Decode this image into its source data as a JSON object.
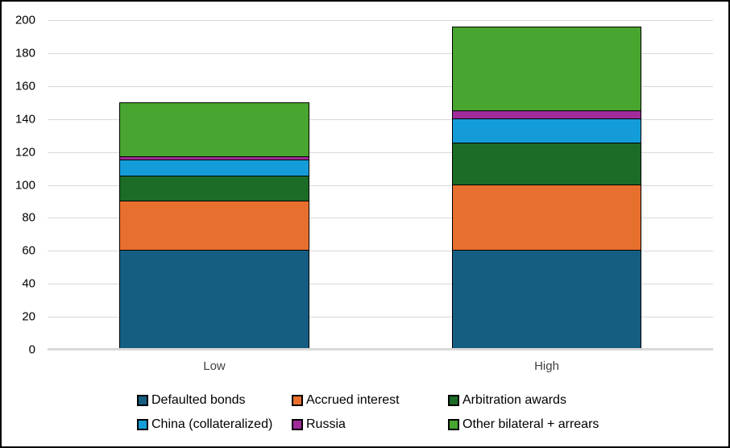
{
  "chart_data": {
    "type": "bar",
    "stacked": true,
    "title": "",
    "xlabel": "",
    "ylabel": "",
    "categories": [
      "Low",
      "High"
    ],
    "series": [
      {
        "name": "Defaulted bonds",
        "color": "#165e81",
        "values": [
          60,
          60
        ]
      },
      {
        "name": "Accrued interest",
        "color": "#e8702e",
        "values": [
          30,
          40
        ]
      },
      {
        "name": "Arbitration awards",
        "color": "#1c6b26",
        "values": [
          15,
          25
        ]
      },
      {
        "name": "China (collateralized)",
        "color": "#149cd8",
        "values": [
          10,
          15
        ]
      },
      {
        "name": "Russia",
        "color": "#a02b99",
        "values": [
          2,
          5
        ]
      },
      {
        "name": "Other bilateral + arrears",
        "color": "#48a52f",
        "values": [
          33,
          51
        ]
      }
    ],
    "totals": [
      150,
      196
    ],
    "ylim": [
      0,
      200
    ],
    "yticks": [
      0,
      20,
      40,
      60,
      80,
      100,
      120,
      140,
      160,
      180,
      200
    ],
    "grid": "horizontal",
    "gridline_color": "#d9d9d9",
    "bar_outline_color": "#000000",
    "legend_position": "bottom",
    "legend_columns": 3,
    "legend_rows": 2
  }
}
